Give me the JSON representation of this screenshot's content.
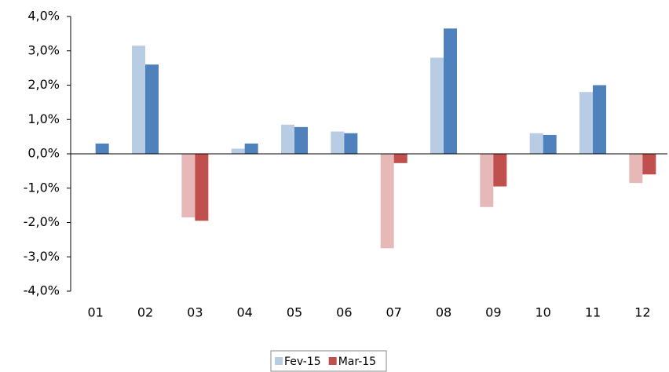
{
  "chart_data": {
    "type": "bar",
    "categories": [
      "01",
      "02",
      "03",
      "04",
      "05",
      "06",
      "07",
      "08",
      "09",
      "10",
      "11",
      "12"
    ],
    "series": [
      {
        "name": "Fev-15",
        "color": "#b8cce4",
        "negative_color": "#e6b9b8",
        "legend_color": "#b8cce4",
        "values": [
          0,
          3.15,
          -1.85,
          0.15,
          0.85,
          0.65,
          -2.75,
          2.8,
          -1.55,
          0.6,
          1.8,
          -0.85
        ]
      },
      {
        "name": "Mar-15",
        "color": "#4f81bd",
        "negative_color": "#c0504d",
        "legend_color": "#c0504d",
        "values": [
          0.3,
          2.6,
          -1.95,
          0.3,
          0.78,
          0.6,
          -0.27,
          3.65,
          -0.95,
          0.55,
          2.0,
          -0.6
        ]
      }
    ],
    "ylim": [
      -4,
      4
    ],
    "yticks": [
      {
        "value": -4,
        "label": "-4,0%"
      },
      {
        "value": -3,
        "label": "-3,0%"
      },
      {
        "value": -2,
        "label": "-2,0%"
      },
      {
        "value": -1,
        "label": "-1,0%"
      },
      {
        "value": 0,
        "label": "0,0%"
      },
      {
        "value": 1,
        "label": "1,0%"
      },
      {
        "value": 2,
        "label": "2,0%"
      },
      {
        "value": 3,
        "label": "3,0%"
      },
      {
        "value": 4,
        "label": "4,0%"
      }
    ],
    "legend": "bottom"
  }
}
